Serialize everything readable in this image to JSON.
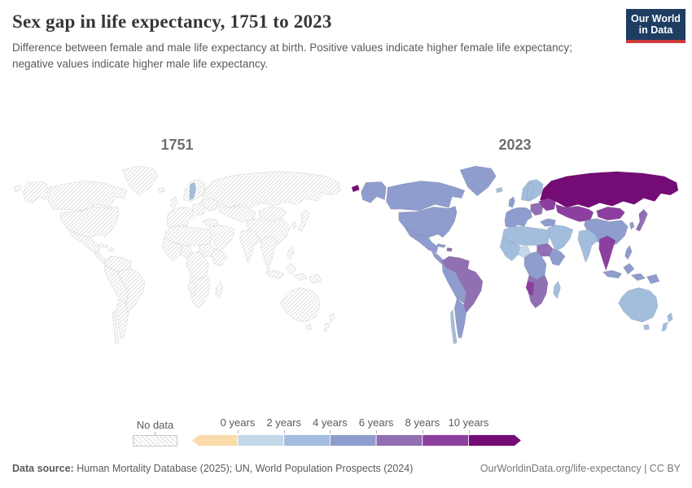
{
  "header": {
    "title": "Sex gap in life expectancy, 1751 to 2023",
    "subtitle": "Difference between female and male life expectancy at birth. Positive values indicate higher female life expectancy; negative values indicate higher male life expectancy.",
    "logo": {
      "line1": "Our World",
      "line2": "in Data",
      "bg_color": "#1d3d63",
      "stripe_color": "#cc3b3b"
    }
  },
  "chart_data": {
    "type": "heatmap",
    "subtype": "choropleth-world-map-pair",
    "title": "Sex gap in life expectancy, 1751 to 2023",
    "unit": "years",
    "legend": {
      "no_data_label": "No data",
      "tick_labels": [
        "0 years",
        "2 years",
        "4 years",
        "6 years",
        "8 years",
        "10 years"
      ],
      "bins": [
        {
          "range": "< 0",
          "color": "#fadcab"
        },
        {
          "range": "0-2",
          "color": "#c5d8ea"
        },
        {
          "range": "2-4",
          "color": "#a3bedd"
        },
        {
          "range": "4-6",
          "color": "#8e9dcd"
        },
        {
          "range": "6-8",
          "color": "#9070b2"
        },
        {
          "range": "8-10",
          "color": "#8d3f9f"
        },
        {
          "range": "> 10",
          "color": "#740c75"
        }
      ],
      "no_data_hatch_color": "#d9d9d9"
    },
    "maps": [
      {
        "label": "1751",
        "values": {
          "sweden": 3.8
        }
      },
      {
        "label": "2023",
        "values": {
          "russia": 11.3,
          "russia-east-tip": 11.3,
          "canada": 4.6,
          "alaska": 5.3,
          "greenland": 4.5,
          "usa": 5.3,
          "mexico": 5.5,
          "central-america": 5.5,
          "cuba": 5.5,
          "hispaniola": 6.5,
          "colombia-venezuela": 6.8,
          "brazil": 6.9,
          "peru-bolivia": 5.2,
          "argentina": 5.4,
          "chile": 3.8,
          "iceland": 3.2,
          "uk": 4.2,
          "western-europe": 4.8,
          "scandinavia": 3.4,
          "sweden": 3.3,
          "eastern-europe": 6.8,
          "ukraine-belarus": 9.4,
          "turkey": 5.2,
          "middle-east": 3.0,
          "kazakhstan": 8.6,
          "mongolia": 8.4,
          "china": 5.4,
          "korea": 5.8,
          "japan": 6.1,
          "india": 3.3,
          "mainland-se-asia": 8.6,
          "philippines": 4.8,
          "indonesia": 4.7,
          "png": 5.0,
          "north-africa": 3.1,
          "west-africa": 3.6,
          "nigeria": 1.6,
          "sudan-region": 6.8,
          "east-africa": 4.6,
          "central-africa": 4.8,
          "southern-africa": 6.9,
          "namibia": 8.8,
          "madagascar": 3.4,
          "australia": 3.3,
          "tasmania": 3.3,
          "new-zealand": 3.6
        }
      }
    ]
  },
  "footer": {
    "source_label": "Data source:",
    "source_text": " Human Mortality Database (2025); UN, World Population Prospects (2024)",
    "credit": "OurWorldinData.org/life-expectancy | CC BY"
  }
}
